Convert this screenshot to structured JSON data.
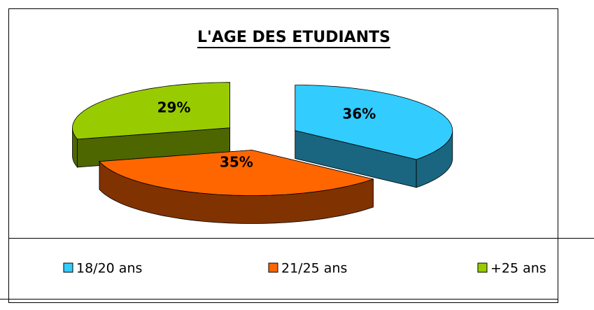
{
  "chart_data": {
    "type": "pie3d",
    "title": "L'AGE DES ETUDIANTS",
    "categories": [
      "18/20 ans",
      "21/25 ans",
      "+25 ans"
    ],
    "values": [
      36,
      35,
      29
    ],
    "value_labels": [
      "36%",
      "35%",
      "29%"
    ],
    "colors": [
      "#33ccff",
      "#ff6600",
      "#99cc00"
    ],
    "legend": "bottom"
  }
}
